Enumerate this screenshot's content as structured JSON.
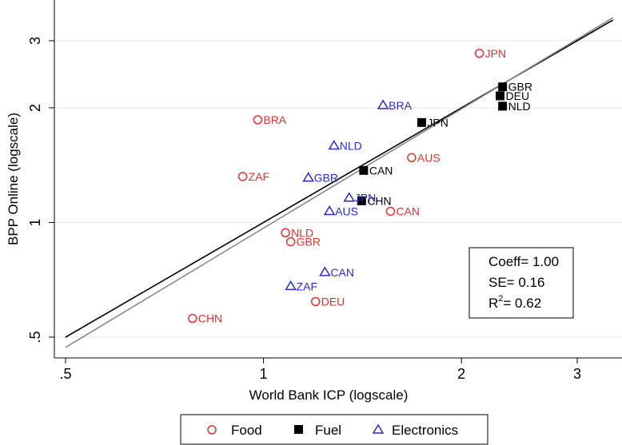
{
  "chart_data": {
    "type": "scatter",
    "xlabel": "World Bank ICP (logscale)",
    "ylabel": "BPP Online (logscale)",
    "xscale": "log",
    "yscale": "log",
    "xlim": [
      0.5,
      3.4
    ],
    "ylim": [
      0.45,
      3.6
    ],
    "xticks": [
      {
        "value": 0.5,
        "label": ".5"
      },
      {
        "value": 1,
        "label": "1"
      },
      {
        "value": 2,
        "label": "2"
      },
      {
        "value": 3,
        "label": "3"
      }
    ],
    "yticks": [
      {
        "value": 0.5,
        "label": ".5"
      },
      {
        "value": 1,
        "label": "1"
      },
      {
        "value": 2,
        "label": "2"
      },
      {
        "value": 3,
        "label": "3"
      }
    ],
    "grid": "horizontal",
    "series": [
      {
        "name": "Food",
        "marker": "circle",
        "color": "#e03030",
        "points": [
          {
            "label": "JPN",
            "x": 2.13,
            "y": 2.78
          },
          {
            "label": "BRA",
            "x": 0.98,
            "y": 1.86
          },
          {
            "label": "AUS",
            "x": 1.68,
            "y": 1.48
          },
          {
            "label": "ZAF",
            "x": 0.93,
            "y": 1.32
          },
          {
            "label": "CAN",
            "x": 1.56,
            "y": 1.07
          },
          {
            "label": "NLD",
            "x": 1.08,
            "y": 0.94
          },
          {
            "label": "GBR",
            "x": 1.1,
            "y": 0.89
          },
          {
            "label": "DEU",
            "x": 1.2,
            "y": 0.62
          },
          {
            "label": "CHN",
            "x": 0.78,
            "y": 0.56
          }
        ]
      },
      {
        "name": "Fuel",
        "marker": "square",
        "color": "#000000",
        "points": [
          {
            "label": "GBR",
            "x": 2.31,
            "y": 2.27
          },
          {
            "label": "DEU",
            "x": 2.29,
            "y": 2.15
          },
          {
            "label": "NLD",
            "x": 2.31,
            "y": 2.02
          },
          {
            "label": "JPN",
            "x": 1.74,
            "y": 1.83
          },
          {
            "label": "CAN",
            "x": 1.42,
            "y": 1.37
          },
          {
            "label": "CHN",
            "x": 1.41,
            "y": 1.14
          }
        ]
      },
      {
        "name": "Electronics",
        "marker": "triangle",
        "color": "#2a2acc",
        "points": [
          {
            "label": "BRA",
            "x": 1.52,
            "y": 2.03
          },
          {
            "label": "NLD",
            "x": 1.28,
            "y": 1.59
          },
          {
            "label": "GBR",
            "x": 1.17,
            "y": 1.31
          },
          {
            "label": "JPN",
            "x": 1.35,
            "y": 1.16
          },
          {
            "label": "AUS",
            "x": 1.26,
            "y": 1.07
          },
          {
            "label": "CAN",
            "x": 1.24,
            "y": 0.74
          },
          {
            "label": "ZAF",
            "x": 1.1,
            "y": 0.68
          }
        ]
      }
    ],
    "fit_lines": [
      {
        "color": "#000000",
        "points": [
          [
            0.5,
            0.5
          ],
          [
            3.4,
            3.4
          ]
        ]
      },
      {
        "color": "#888888",
        "points": [
          [
            0.5,
            0.47
          ],
          [
            3.4,
            3.45
          ]
        ]
      }
    ],
    "stats": {
      "coeff": "Coeff= 1.00",
      "se": "SE= 0.16",
      "r2_prefix": "R",
      "r2_sup": "2",
      "r2_suffix": "= 0.62"
    },
    "legend": {
      "placement": "bottom",
      "items": [
        {
          "label": "Food",
          "marker": "circle",
          "color": "#e03030"
        },
        {
          "label": "Fuel",
          "marker": "square",
          "color": "#000000"
        },
        {
          "label": "Electronics",
          "marker": "triangle",
          "color": "#2a2acc"
        }
      ]
    }
  }
}
